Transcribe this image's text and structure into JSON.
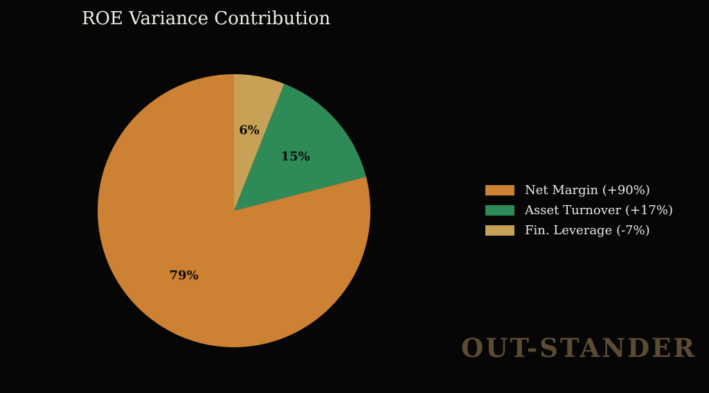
{
  "page": {
    "background_color": "#060606"
  },
  "title": {
    "text": "ROE Variance Contribution",
    "color": "#f0ede6"
  },
  "watermark": {
    "text": "OUT-STANDER",
    "color": "#5b4c33"
  },
  "legend": {
    "position": "right",
    "text_color": "#e9e9e9"
  },
  "chart_data": {
    "type": "pie",
    "title": "ROE Variance Contribution",
    "slices": [
      {
        "label": "Net Margin (+90%)",
        "value": 79,
        "display": "79%",
        "color": "#cd8132"
      },
      {
        "label": "Asset Turnover (+17%)",
        "value": 15,
        "display": "15%",
        "color": "#2e8b57"
      },
      {
        "label": "Fin. Leverage (-7%)",
        "value": 6,
        "display": "6%",
        "color": "#c7a155"
      }
    ],
    "start_angle_deg": 90,
    "direction": "counterclockwise",
    "label_color": "#0c0c0c",
    "pct_label_distance": 0.6,
    "legend_position": "right",
    "watermark": "OUT-STANDER",
    "background": "#060606"
  }
}
